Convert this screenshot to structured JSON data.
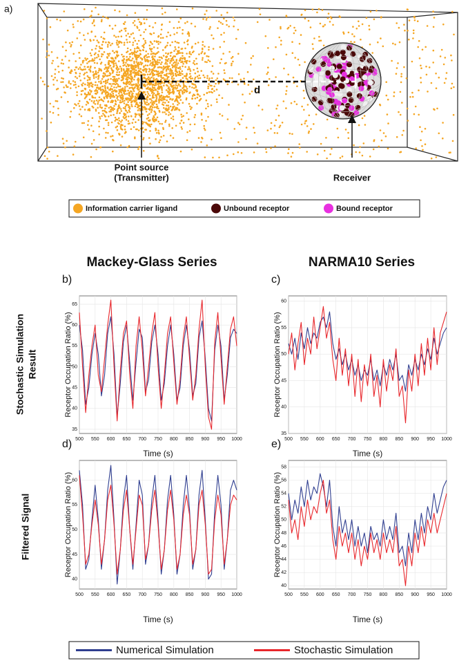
{
  "panel_a": {
    "label": "a)",
    "distance": "d",
    "source": [
      "Point source",
      "(Transmitter)"
    ],
    "receiver": "Receiver",
    "legend": [
      {
        "name": "Information carrier ligand",
        "color": "#f5a623"
      },
      {
        "name": "Unbound receptor",
        "color": "#4a0808"
      },
      {
        "name": "Bound receptor",
        "color": "#e830e0"
      }
    ]
  },
  "columns": [
    "Mackey-Glass Series",
    "NARMA10 Series"
  ],
  "rows": [
    [
      "Stochastic Simulation",
      "Result"
    ],
    [
      "Filtered Signal"
    ]
  ],
  "legend": [
    {
      "name": "Numerical Simulation",
      "color": "#2e3d8f"
    },
    {
      "name": "Stochastic Simulation",
      "color": "#e8262b"
    }
  ],
  "chart_data": [
    {
      "type": "line",
      "panel_label": "b)",
      "x_label": "Time (s)",
      "y_label": "Receptor Occupation Ratio (%)",
      "grid": true,
      "x": [
        500,
        510,
        520,
        530,
        540,
        550,
        560,
        570,
        580,
        590,
        600,
        610,
        620,
        630,
        640,
        650,
        660,
        670,
        680,
        690,
        700,
        710,
        720,
        730,
        740,
        750,
        760,
        770,
        780,
        790,
        800,
        810,
        820,
        830,
        840,
        850,
        860,
        870,
        880,
        890,
        900,
        910,
        920,
        930,
        940,
        950,
        960,
        970,
        980,
        990,
        1000
      ],
      "xlim": [
        500,
        1000
      ],
      "xticks": [
        500,
        550,
        600,
        650,
        700,
        750,
        800,
        850,
        900,
        950,
        1000
      ],
      "ylim": [
        34,
        67
      ],
      "yticks": [
        35,
        40,
        45,
        50,
        55,
        60,
        65
      ],
      "series": [
        {
          "color": "#2e3d8f",
          "values": [
            60,
            54,
            41,
            45,
            53,
            58,
            53,
            43,
            48,
            58,
            62,
            53,
            38,
            46,
            56,
            60,
            51,
            42,
            51,
            59,
            57,
            44,
            47,
            56,
            60,
            53,
            42,
            46,
            55,
            60,
            53,
            42,
            45,
            55,
            60,
            54,
            43,
            46,
            57,
            61,
            52,
            40,
            37,
            54,
            60,
            55,
            42,
            48,
            57,
            59,
            58
          ]
        },
        {
          "color": "#e8262b",
          "values": [
            63,
            50,
            39,
            48,
            55,
            60,
            48,
            44,
            52,
            60,
            66,
            50,
            37,
            49,
            58,
            61,
            48,
            40,
            55,
            62,
            54,
            43,
            50,
            58,
            63,
            50,
            40,
            48,
            58,
            62,
            51,
            41,
            47,
            57,
            62,
            52,
            42,
            48,
            59,
            66,
            50,
            38,
            35,
            56,
            63,
            52,
            41,
            50,
            59,
            62,
            55
          ]
        }
      ]
    },
    {
      "type": "line",
      "panel_label": "c)",
      "x_label": "Time (s)",
      "y_label": "Receptor Occupation Ratio (%)",
      "grid": true,
      "x": [
        500,
        510,
        520,
        530,
        540,
        550,
        560,
        570,
        580,
        590,
        600,
        610,
        620,
        630,
        640,
        650,
        660,
        670,
        680,
        690,
        700,
        710,
        720,
        730,
        740,
        750,
        760,
        770,
        780,
        790,
        800,
        810,
        820,
        830,
        840,
        850,
        860,
        870,
        880,
        890,
        900,
        910,
        920,
        930,
        940,
        950,
        960,
        970,
        980,
        990,
        1000
      ],
      "xlim": [
        500,
        1000
      ],
      "xticks": [
        500,
        550,
        600,
        650,
        700,
        750,
        800,
        850,
        900,
        950,
        1000
      ],
      "ylim": [
        35,
        61
      ],
      "yticks": [
        35,
        40,
        45,
        50,
        55,
        60
      ],
      "series": [
        {
          "color": "#2e3d8f",
          "values": [
            52,
            50,
            53,
            49,
            54,
            51,
            55,
            52,
            54,
            53,
            56,
            57,
            55,
            58,
            52,
            49,
            51,
            48,
            50,
            47,
            49,
            46,
            48,
            45,
            47,
            46,
            49,
            45,
            47,
            44,
            48,
            46,
            49,
            47,
            50,
            45,
            46,
            43,
            48,
            46,
            49,
            47,
            50,
            48,
            51,
            49,
            53,
            50,
            52,
            54,
            55
          ]
        },
        {
          "color": "#e8262b",
          "values": [
            50,
            54,
            47,
            52,
            56,
            48,
            53,
            50,
            57,
            51,
            55,
            59,
            53,
            56,
            49,
            45,
            53,
            46,
            51,
            44,
            50,
            42,
            49,
            41,
            48,
            44,
            50,
            42,
            46,
            40,
            49,
            43,
            48,
            45,
            51,
            42,
            44,
            37,
            47,
            43,
            50,
            44,
            52,
            46,
            53,
            47,
            55,
            48,
            54,
            56,
            58
          ]
        }
      ]
    },
    {
      "type": "line",
      "panel_label": "d)",
      "x_label": "Time (s)",
      "y_label": "Receptor Occupation Ratio (%)",
      "grid": true,
      "x": [
        500,
        510,
        520,
        530,
        540,
        550,
        560,
        570,
        580,
        590,
        600,
        610,
        620,
        630,
        640,
        650,
        660,
        670,
        680,
        690,
        700,
        710,
        720,
        730,
        740,
        750,
        760,
        770,
        780,
        790,
        800,
        810,
        820,
        830,
        840,
        850,
        860,
        870,
        880,
        890,
        900,
        910,
        920,
        930,
        940,
        950,
        960,
        970,
        980,
        990,
        1000
      ],
      "xlim": [
        500,
        1000
      ],
      "xticks": [
        500,
        550,
        600,
        650,
        700,
        750,
        800,
        850,
        900,
        950,
        1000
      ],
      "ylim": [
        38,
        64
      ],
      "yticks": [
        40,
        45,
        50,
        55,
        60
      ],
      "series": [
        {
          "color": "#2e3d8f",
          "values": [
            62,
            55,
            42,
            44,
            52,
            59,
            52,
            42,
            48,
            58,
            63,
            52,
            39,
            46,
            56,
            61,
            50,
            42,
            51,
            60,
            57,
            43,
            47,
            56,
            61,
            52,
            41,
            46,
            56,
            61,
            53,
            41,
            45,
            55,
            61,
            54,
            42,
            46,
            57,
            62,
            52,
            40,
            41,
            54,
            61,
            55,
            42,
            48,
            58,
            60,
            58
          ]
        },
        {
          "color": "#e8262b",
          "values": [
            61,
            53,
            43,
            45,
            51,
            56,
            51,
            43,
            48,
            56,
            59,
            51,
            41,
            46,
            54,
            58,
            50,
            43,
            50,
            57,
            55,
            44,
            47,
            54,
            58,
            51,
            42,
            46,
            54,
            58,
            52,
            42,
            45,
            53,
            57,
            53,
            43,
            46,
            55,
            58,
            51,
            41,
            42,
            52,
            57,
            53,
            43,
            48,
            55,
            57,
            56
          ]
        }
      ]
    },
    {
      "type": "line",
      "panel_label": "e)",
      "x_label": "Time (s)",
      "y_label": "Receptor Occupation Ratio (%)",
      "grid": true,
      "x": [
        500,
        510,
        520,
        530,
        540,
        550,
        560,
        570,
        580,
        590,
        600,
        610,
        620,
        630,
        640,
        650,
        660,
        670,
        680,
        690,
        700,
        710,
        720,
        730,
        740,
        750,
        760,
        770,
        780,
        790,
        800,
        810,
        820,
        830,
        840,
        850,
        860,
        870,
        880,
        890,
        900,
        910,
        920,
        930,
        940,
        950,
        960,
        970,
        980,
        990,
        1000
      ],
      "xlim": [
        500,
        1000
      ],
      "xticks": [
        500,
        550,
        600,
        650,
        700,
        750,
        800,
        850,
        900,
        950,
        1000
      ],
      "ylim": [
        39.5,
        59
      ],
      "yticks": [
        40,
        42,
        44,
        46,
        48,
        50,
        52,
        54,
        56,
        58
      ],
      "series": [
        {
          "color": "#2e3d8f",
          "values": [
            54,
            50,
            53,
            51,
            55,
            52,
            56,
            53,
            55,
            54,
            57,
            55,
            52,
            56,
            49,
            46,
            52,
            48,
            50,
            47,
            50,
            46,
            49,
            46,
            48,
            45,
            49,
            47,
            48,
            46,
            50,
            47,
            49,
            47,
            51,
            45,
            46,
            43,
            48,
            45,
            50,
            47,
            51,
            48,
            52,
            50,
            54,
            51,
            53,
            55,
            56
          ]
        },
        {
          "color": "#e8262b",
          "values": [
            53,
            48,
            50,
            47,
            52,
            49,
            53,
            50,
            52,
            51,
            54,
            56,
            51,
            53,
            47,
            44,
            49,
            46,
            48,
            45,
            48,
            44,
            47,
            43,
            46,
            44,
            48,
            45,
            47,
            44,
            48,
            45,
            47,
            45,
            49,
            43,
            44,
            40,
            46,
            43,
            48,
            45,
            49,
            46,
            50,
            48,
            51,
            48,
            50,
            52,
            54
          ]
        }
      ]
    }
  ]
}
